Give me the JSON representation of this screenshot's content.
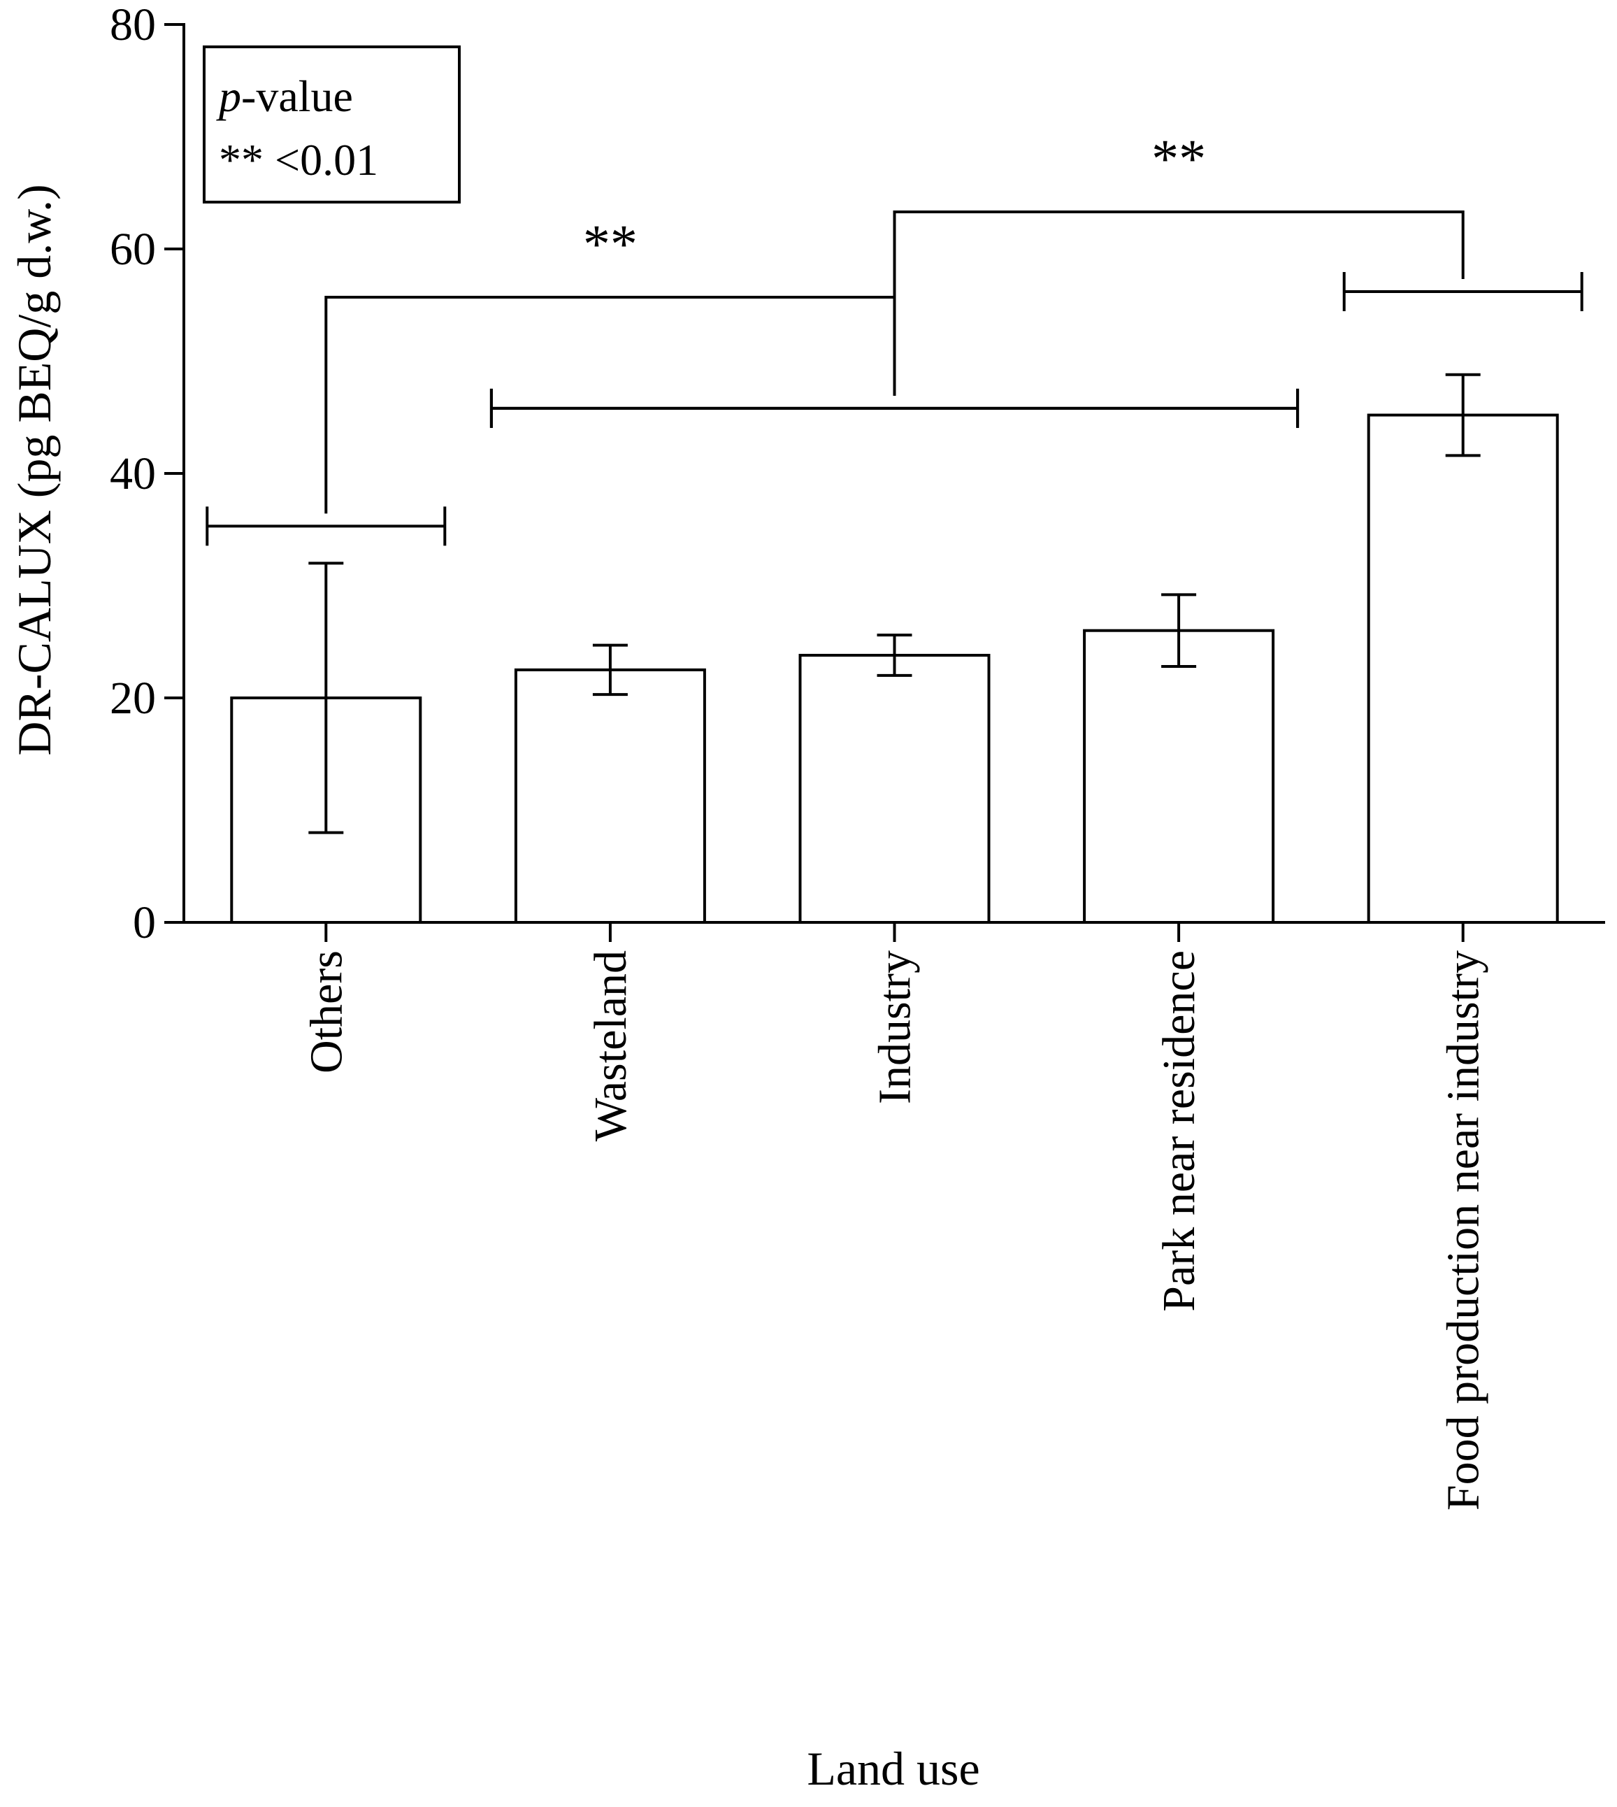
{
  "chart_data": {
    "type": "bar",
    "title": "",
    "xlabel": "Land use",
    "ylabel": "DR-CALUX (pg BEQ/g d.w.)",
    "ylim": [
      0,
      80
    ],
    "yticks": [
      0,
      20,
      40,
      60,
      80
    ],
    "grid": false,
    "categories": [
      "Others",
      "Wasteland",
      "Industry",
      "Park near residence",
      "Food production near industry"
    ],
    "values": [
      20,
      22.5,
      23.8,
      26,
      45.2
    ],
    "errors": [
      12,
      2.2,
      1.8,
      3.2,
      3.6
    ],
    "legend": {
      "placement": "top-left",
      "line1_italic": "p",
      "line1_rest": "-value",
      "line2": "** <0.01"
    },
    "significance": [
      {
        "label": "**",
        "group_a": {
          "from": 0,
          "to": 0,
          "y": 35.3
        },
        "group_b": {
          "from": 1,
          "to": 3,
          "y": 45.8
        },
        "bracket_y": 55.7
      },
      {
        "label": "**",
        "group_a": {
          "from": 1,
          "to": 3,
          "y": 45.8
        },
        "group_b": {
          "from": 4,
          "to": 4,
          "y": 56.2
        },
        "bracket_y": 63.3
      }
    ]
  }
}
